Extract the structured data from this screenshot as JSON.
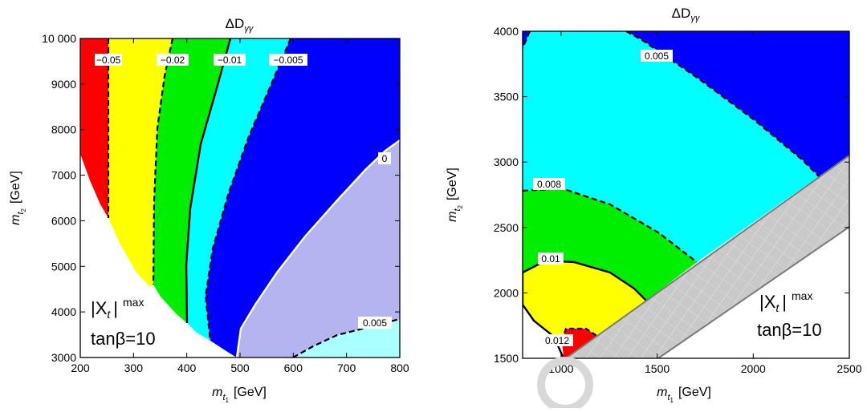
{
  "chart_data": [
    {
      "type": "heatmap",
      "title": "ΔD",
      "title_sub": "γγ",
      "xlabel": "[GeV]",
      "ylabel": "[GeV]",
      "xlim": [
        200,
        800
      ],
      "ylim": [
        3000,
        10000
      ],
      "xticks": [
        "200",
        "300",
        "400",
        "500",
        "600",
        "700",
        "800"
      ],
      "yticks": [
        "3000",
        "4000",
        "5000",
        "6000",
        "7000",
        "8000",
        "9000",
        "10 000"
      ],
      "contours": [
        {
          "value": -0.05,
          "label": "−0.05",
          "style": "dashed"
        },
        {
          "value": -0.02,
          "label": "−0.02",
          "style": "dashed"
        },
        {
          "value": -0.01,
          "label": "−0.01",
          "style": "solid"
        },
        {
          "value": -0.005,
          "label": "−0.005",
          "style": "dashed"
        },
        {
          "value": 0,
          "label": "0",
          "style": "solid-white"
        },
        {
          "value": 0.005,
          "label": "0.005",
          "style": "dashed"
        }
      ],
      "regions": [
        {
          "range": "< -0.05",
          "color": "#ff0000"
        },
        {
          "range": "-0.05 to -0.02",
          "color": "#ffff00"
        },
        {
          "range": "-0.02 to -0.01",
          "color": "#00ee00"
        },
        {
          "range": "-0.01 to -0.005",
          "color": "#00ffff"
        },
        {
          "range": "-0.005 to 0",
          "color": "#0000ff"
        },
        {
          "range": "0 to 0.005",
          "color": "#b4b4f0"
        },
        {
          "range": "> 0.005",
          "color": "#aaffff"
        }
      ],
      "annotation": {
        "line1": "|X",
        "line1_sub": "t",
        "line1_end": "|",
        "line1_sup": "max",
        "line2": "tanβ=10"
      }
    },
    {
      "type": "heatmap",
      "title": "ΔD",
      "title_sub": "γγ",
      "xlabel": "[GeV]",
      "ylabel": "[GeV]",
      "xlim": [
        800,
        2500
      ],
      "ylim": [
        1500,
        4000
      ],
      "xticks": [
        "1000",
        "1500",
        "2000",
        "2500"
      ],
      "yticks": [
        "1500",
        "2000",
        "2500",
        "3000",
        "3500",
        "4000"
      ],
      "contours": [
        {
          "value": 0.005,
          "label": "0.005",
          "style": "dashed"
        },
        {
          "value": 0.008,
          "label": "0.008",
          "style": "dashed"
        },
        {
          "value": 0.01,
          "label": "0.01",
          "style": "solid"
        },
        {
          "value": 0.012,
          "label": "0.012",
          "style": "dashed"
        }
      ],
      "regions": [
        {
          "range": "< 0.005",
          "color": "#0000ff"
        },
        {
          "range": "0.005 to 0.008",
          "color": "#00ffff"
        },
        {
          "range": "0.008 to 0.01",
          "color": "#00ee00"
        },
        {
          "range": "0.01 to 0.012",
          "color": "#ffff00"
        },
        {
          "range": "> 0.012",
          "color": "#ff0000"
        },
        {
          "range": "excluded",
          "color": "#c8c8c8"
        }
      ],
      "annotation": {
        "line1": "|X",
        "line1_sub": "t",
        "line1_end": "|",
        "line1_sup": "max",
        "line2": "tanβ=10"
      }
    }
  ],
  "x_mass_symbol": "m",
  "x_mass_tilde": "~",
  "x_mass_sub": "t",
  "x_mass_subsub": "1",
  "y_mass_subsub": "2"
}
